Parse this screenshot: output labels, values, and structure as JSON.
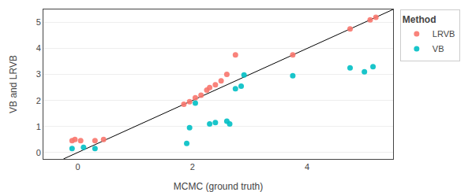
{
  "chart_data": {
    "type": "scatter",
    "xlabel": "MCMC (ground truth)",
    "ylabel": "VB and LRVB",
    "legend_title": "Method",
    "legend": "right",
    "grid": "y",
    "xlim": [
      -0.6,
      5.5
    ],
    "ylim": [
      -0.25,
      5.5
    ],
    "xticks": [
      0,
      2,
      4
    ],
    "yticks": [
      0,
      1,
      2,
      3,
      4,
      5
    ],
    "series": [
      {
        "type": "line",
        "color": "#000000",
        "x": [
          -0.25,
          5.5
        ],
        "values": [
          -0.25,
          5.5
        ]
      },
      {
        "name": "LRVB",
        "type": "scatter",
        "marker": "circle",
        "color": "#F8766D",
        "x": [
          -0.1,
          -0.05,
          0.05,
          0.3,
          0.45,
          1.85,
          1.95,
          2.05,
          2.15,
          2.25,
          2.3,
          2.4,
          2.5,
          2.6,
          2.75,
          3.75,
          4.75,
          5.1,
          5.2
        ],
        "values": [
          0.45,
          0.5,
          0.45,
          0.45,
          0.5,
          1.85,
          1.95,
          2.1,
          2.2,
          2.4,
          2.5,
          2.6,
          2.75,
          3.0,
          3.75,
          3.75,
          4.75,
          5.1,
          5.2
        ]
      },
      {
        "name": "VB",
        "type": "scatter",
        "marker": "circle",
        "color": "#00BFC4",
        "x": [
          -0.1,
          0.1,
          0.3,
          1.9,
          1.95,
          2.05,
          2.3,
          2.4,
          2.6,
          2.65,
          2.75,
          2.85,
          2.9,
          3.75,
          4.75,
          5.0,
          5.15
        ],
        "values": [
          0.15,
          0.2,
          0.15,
          0.35,
          0.95,
          1.9,
          1.1,
          1.15,
          1.2,
          1.1,
          2.45,
          2.55,
          2.98,
          2.95,
          3.25,
          3.1,
          3.3
        ]
      }
    ]
  }
}
